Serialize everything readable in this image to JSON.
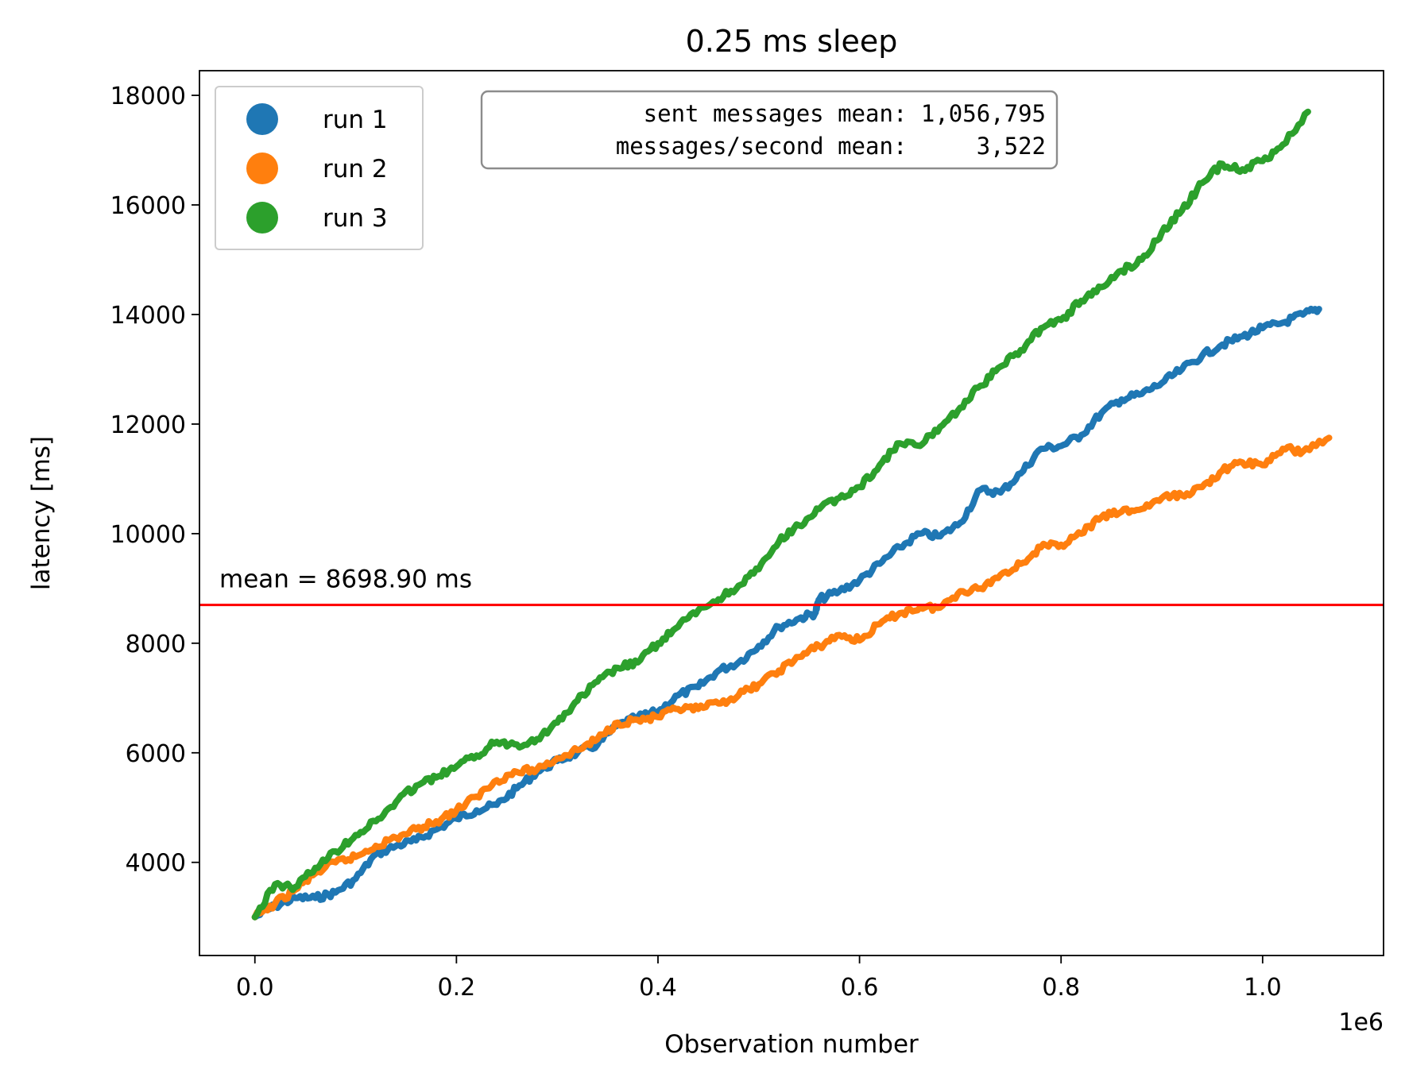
{
  "chart_data": {
    "type": "line",
    "title": "0.25 ms sleep",
    "xlabel": "Observation number",
    "ylabel": "latency [ms]",
    "x_offset_label": "1e6",
    "xlim": [
      -0.055,
      1.12
    ],
    "ylim": [
      2300,
      18450
    ],
    "xticks": [
      0.0,
      0.2,
      0.4,
      0.6,
      0.8,
      1.0
    ],
    "xtick_labels": [
      "0.0",
      "0.2",
      "0.4",
      "0.6",
      "0.8",
      "1.0"
    ],
    "yticks": [
      4000,
      6000,
      8000,
      10000,
      12000,
      14000,
      16000,
      18000
    ],
    "ytick_labels": [
      "4000",
      "6000",
      "8000",
      "10000",
      "12000",
      "14000",
      "16000",
      "18000"
    ],
    "grid": false,
    "legend_position": "top-left",
    "series": [
      {
        "name": "run 1",
        "color": "#1f77b4",
        "x": [
          0.0,
          0.02,
          0.04,
          0.06,
          0.08,
          0.1,
          0.12,
          0.14,
          0.16,
          0.18,
          0.2,
          0.22,
          0.24,
          0.26,
          0.28,
          0.3,
          0.32,
          0.34,
          0.36,
          0.38,
          0.4,
          0.42,
          0.44,
          0.46,
          0.48,
          0.5,
          0.52,
          0.54,
          0.556,
          0.56,
          0.58,
          0.6,
          0.62,
          0.64,
          0.66,
          0.68,
          0.7,
          0.72,
          0.74,
          0.76,
          0.78,
          0.8,
          0.82,
          0.84,
          0.86,
          0.88,
          0.9,
          0.92,
          0.94,
          0.96,
          0.98,
          1.0,
          1.02,
          1.04,
          1.056
        ],
        "values": [
          3000,
          3200,
          3350,
          3350,
          3450,
          3700,
          4150,
          4300,
          4400,
          4600,
          4800,
          4950,
          5050,
          5350,
          5650,
          5850,
          6000,
          6150,
          6500,
          6650,
          6750,
          7050,
          7200,
          7500,
          7650,
          7950,
          8300,
          8450,
          8550,
          8800,
          8950,
          9150,
          9450,
          9750,
          10000,
          9950,
          10200,
          10800,
          10750,
          11100,
          11550,
          11600,
          11800,
          12200,
          12450,
          12550,
          12750,
          13000,
          13250,
          13450,
          13600,
          13750,
          13850,
          14000,
          14100
        ]
      },
      {
        "name": "run 2",
        "color": "#ff7f0e",
        "x": [
          0.0,
          0.02,
          0.04,
          0.06,
          0.08,
          0.1,
          0.12,
          0.14,
          0.16,
          0.18,
          0.2,
          0.22,
          0.24,
          0.26,
          0.28,
          0.3,
          0.32,
          0.34,
          0.36,
          0.38,
          0.4,
          0.42,
          0.44,
          0.46,
          0.48,
          0.5,
          0.52,
          0.54,
          0.56,
          0.58,
          0.6,
          0.62,
          0.64,
          0.66,
          0.68,
          0.7,
          0.72,
          0.74,
          0.76,
          0.78,
          0.8,
          0.82,
          0.84,
          0.86,
          0.88,
          0.9,
          0.92,
          0.94,
          0.96,
          0.98,
          1.0,
          1.02,
          1.04,
          1.066
        ],
        "values": [
          3000,
          3250,
          3500,
          3800,
          4000,
          4100,
          4300,
          4450,
          4600,
          4750,
          4950,
          5200,
          5500,
          5650,
          5700,
          5900,
          6050,
          6250,
          6550,
          6600,
          6650,
          6800,
          6800,
          6900,
          7050,
          7250,
          7500,
          7750,
          7950,
          8150,
          8050,
          8350,
          8550,
          8650,
          8650,
          8950,
          9000,
          9250,
          9450,
          9750,
          9800,
          10000,
          10300,
          10400,
          10450,
          10650,
          10700,
          10850,
          11150,
          11300,
          11250,
          11550,
          11500,
          11750
        ]
      },
      {
        "name": "run 3",
        "color": "#2ca02c",
        "x": [
          0.0,
          0.02,
          0.04,
          0.06,
          0.08,
          0.1,
          0.12,
          0.14,
          0.16,
          0.18,
          0.2,
          0.22,
          0.24,
          0.26,
          0.28,
          0.3,
          0.32,
          0.34,
          0.36,
          0.38,
          0.4,
          0.42,
          0.44,
          0.46,
          0.48,
          0.5,
          0.52,
          0.54,
          0.56,
          0.58,
          0.6,
          0.62,
          0.64,
          0.66,
          0.68,
          0.7,
          0.72,
          0.74,
          0.76,
          0.78,
          0.8,
          0.82,
          0.84,
          0.86,
          0.88,
          0.9,
          0.92,
          0.94,
          0.96,
          0.98,
          1.0,
          1.02,
          1.045
        ],
        "values": [
          3000,
          3600,
          3550,
          3900,
          4200,
          4500,
          4750,
          5100,
          5400,
          5550,
          5750,
          5950,
          6200,
          6150,
          6250,
          6550,
          6950,
          7300,
          7550,
          7650,
          8000,
          8300,
          8600,
          8800,
          9050,
          9350,
          9850,
          10150,
          10450,
          10650,
          10850,
          11250,
          11650,
          11600,
          11950,
          12300,
          12700,
          13050,
          13350,
          13750,
          13900,
          14250,
          14500,
          14800,
          15000,
          15500,
          15900,
          16400,
          16750,
          16650,
          16800,
          17100,
          17700
        ]
      }
    ],
    "mean_line": {
      "value": 8698.9,
      "label": "mean = 8698.90 ms",
      "color": "#ff0000"
    },
    "stats_box": {
      "line1": "  sent messages mean: 1,056,795",
      "line2": "messages/second mean:     3,522"
    }
  }
}
